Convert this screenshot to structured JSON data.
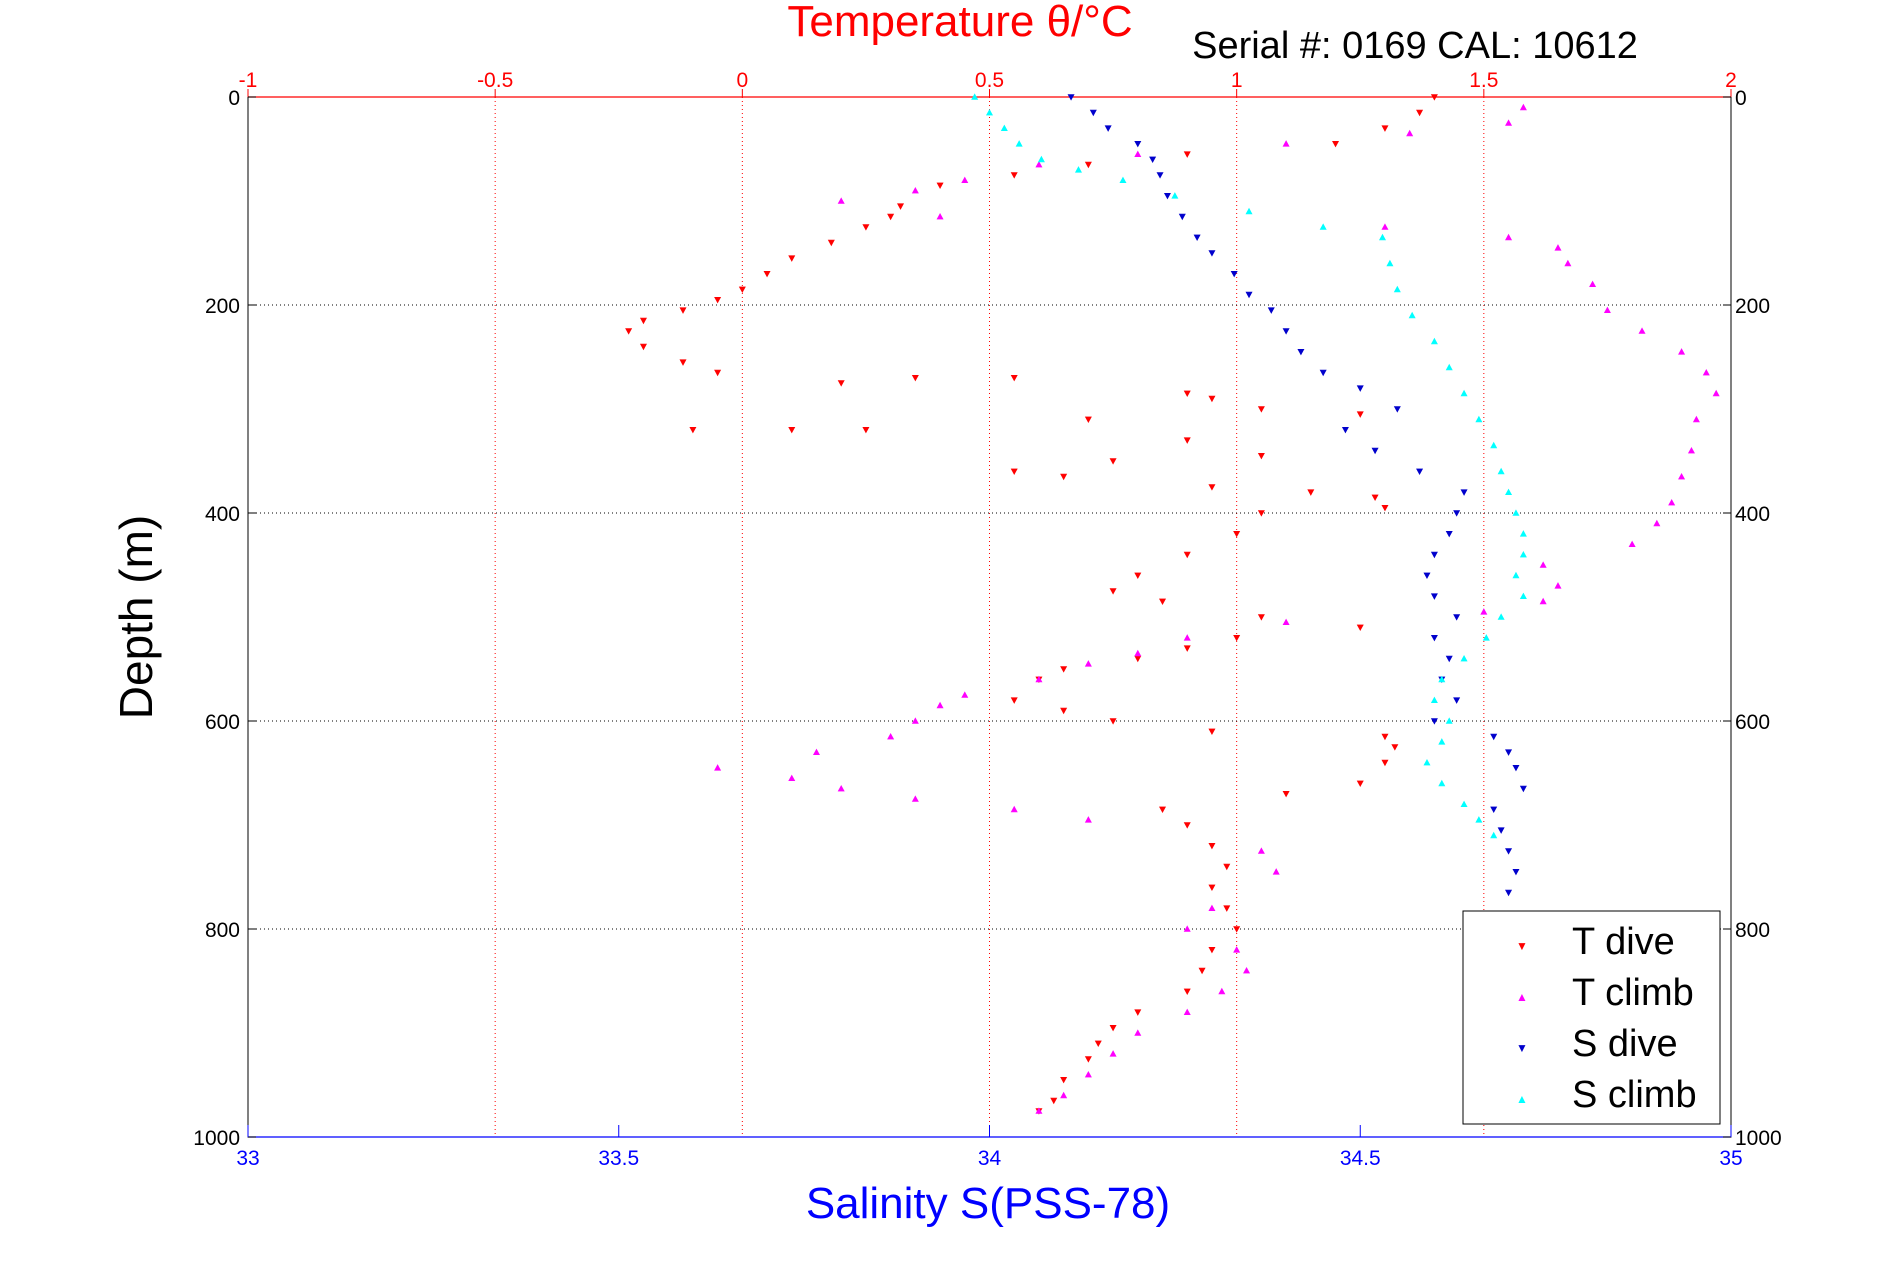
{
  "chart_data": {
    "type": "scatter",
    "title": "Temperature θ/°C",
    "subtitle": "Serial #: 0169 CAL: 10612",
    "xlabel_top": "Temperature θ/°C",
    "xlabel_bottom": "Salinity S(PSS-78)",
    "ylabel": "Depth (m)",
    "temperature_axis": {
      "range": [
        -1,
        2
      ],
      "ticks": [
        -1,
        -0.5,
        0,
        0.5,
        1,
        1.5,
        2
      ],
      "tick_labels": [
        "-1",
        "-0.5",
        "0",
        "0.5",
        "1",
        "1.5",
        "2"
      ]
    },
    "salinity_axis": {
      "range": [
        33,
        35
      ],
      "ticks": [
        33,
        33.5,
        34,
        34.5,
        35
      ],
      "tick_labels": [
        "33",
        "33.5",
        "34",
        "34.5",
        "35"
      ]
    },
    "depth_axis": {
      "range": [
        0,
        1000
      ],
      "reversed": true,
      "ticks": [
        0,
        200,
        400,
        600,
        800,
        1000
      ],
      "tick_labels": [
        "0",
        "200",
        "400",
        "600",
        "800",
        "1000"
      ]
    },
    "grid": true,
    "legend_position": "bottom-right",
    "colors": {
      "T dive": "#ff0000",
      "T climb": "#ff00ff",
      "S dive": "#0000cc",
      "S climb": "#00ffff",
      "temperature_axis": "#ff0000",
      "salinity_axis": "#0000ff"
    },
    "series": [
      {
        "name": "T dive",
        "axis": "temperature",
        "marker": "triangle-down",
        "points": [
          [
            1.4,
            0
          ],
          [
            1.37,
            15
          ],
          [
            1.3,
            30
          ],
          [
            1.2,
            45
          ],
          [
            0.9,
            55
          ],
          [
            0.7,
            65
          ],
          [
            0.55,
            75
          ],
          [
            0.4,
            85
          ],
          [
            0.32,
            105
          ],
          [
            0.3,
            115
          ],
          [
            0.25,
            125
          ],
          [
            0.18,
            140
          ],
          [
            0.1,
            155
          ],
          [
            0.05,
            170
          ],
          [
            0.0,
            185
          ],
          [
            -0.05,
            195
          ],
          [
            -0.12,
            205
          ],
          [
            -0.2,
            215
          ],
          [
            -0.23,
            225
          ],
          [
            -0.2,
            240
          ],
          [
            -0.12,
            255
          ],
          [
            -0.05,
            265
          ],
          [
            0.35,
            270
          ],
          [
            0.55,
            270
          ],
          [
            0.2,
            275
          ],
          [
            0.9,
            285
          ],
          [
            0.95,
            290
          ],
          [
            1.05,
            300
          ],
          [
            0.7,
            310
          ],
          [
            1.25,
            305
          ],
          [
            -0.1,
            320
          ],
          [
            0.1,
            320
          ],
          [
            0.25,
            320
          ],
          [
            0.9,
            330
          ],
          [
            1.05,
            345
          ],
          [
            0.75,
            350
          ],
          [
            0.55,
            360
          ],
          [
            0.65,
            365
          ],
          [
            0.95,
            375
          ],
          [
            1.15,
            380
          ],
          [
            1.28,
            385
          ],
          [
            1.3,
            395
          ],
          [
            1.05,
            400
          ],
          [
            1.0,
            420
          ],
          [
            0.9,
            440
          ],
          [
            0.8,
            460
          ],
          [
            0.75,
            475
          ],
          [
            0.85,
            485
          ],
          [
            1.05,
            500
          ],
          [
            1.25,
            510
          ],
          [
            1.0,
            520
          ],
          [
            0.9,
            530
          ],
          [
            0.8,
            540
          ],
          [
            0.65,
            550
          ],
          [
            0.6,
            560
          ],
          [
            0.55,
            580
          ],
          [
            0.65,
            590
          ],
          [
            0.75,
            600
          ],
          [
            0.95,
            610
          ],
          [
            1.3,
            615
          ],
          [
            1.32,
            625
          ],
          [
            1.3,
            640
          ],
          [
            1.25,
            660
          ],
          [
            1.1,
            670
          ],
          [
            0.85,
            685
          ],
          [
            0.9,
            700
          ],
          [
            0.95,
            720
          ],
          [
            0.98,
            740
          ],
          [
            0.95,
            760
          ],
          [
            0.98,
            780
          ],
          [
            1.0,
            800
          ],
          [
            0.95,
            820
          ],
          [
            0.93,
            840
          ],
          [
            0.9,
            860
          ],
          [
            0.8,
            880
          ],
          [
            0.75,
            895
          ],
          [
            0.72,
            910
          ],
          [
            0.7,
            925
          ],
          [
            0.65,
            945
          ],
          [
            0.63,
            965
          ],
          [
            0.6,
            975
          ]
        ]
      },
      {
        "name": "T climb",
        "axis": "temperature",
        "marker": "triangle-up",
        "points": [
          [
            1.58,
            10
          ],
          [
            1.55,
            25
          ],
          [
            1.35,
            35
          ],
          [
            1.1,
            45
          ],
          [
            0.8,
            55
          ],
          [
            0.6,
            65
          ],
          [
            0.45,
            80
          ],
          [
            0.35,
            90
          ],
          [
            0.2,
            100
          ],
          [
            0.4,
            115
          ],
          [
            1.3,
            125
          ],
          [
            1.55,
            135
          ],
          [
            1.65,
            145
          ],
          [
            1.67,
            160
          ],
          [
            1.72,
            180
          ],
          [
            1.75,
            205
          ],
          [
            1.82,
            225
          ],
          [
            1.9,
            245
          ],
          [
            1.95,
            265
          ],
          [
            1.97,
            285
          ],
          [
            1.93,
            310
          ],
          [
            1.92,
            340
          ],
          [
            1.9,
            365
          ],
          [
            1.88,
            390
          ],
          [
            1.85,
            410
          ],
          [
            1.8,
            430
          ],
          [
            1.62,
            450
          ],
          [
            1.65,
            470
          ],
          [
            1.62,
            485
          ],
          [
            1.5,
            495
          ],
          [
            1.1,
            505
          ],
          [
            0.9,
            520
          ],
          [
            0.8,
            535
          ],
          [
            0.7,
            545
          ],
          [
            0.6,
            560
          ],
          [
            0.45,
            575
          ],
          [
            0.4,
            585
          ],
          [
            0.35,
            600
          ],
          [
            0.3,
            615
          ],
          [
            0.15,
            630
          ],
          [
            -0.05,
            645
          ],
          [
            0.1,
            655
          ],
          [
            0.2,
            665
          ],
          [
            0.35,
            675
          ],
          [
            0.55,
            685
          ],
          [
            0.7,
            695
          ],
          [
            1.05,
            725
          ],
          [
            1.08,
            745
          ],
          [
            0.95,
            780
          ],
          [
            0.9,
            800
          ],
          [
            1.0,
            820
          ],
          [
            1.02,
            840
          ],
          [
            0.97,
            860
          ],
          [
            0.9,
            880
          ],
          [
            0.8,
            900
          ],
          [
            0.75,
            920
          ],
          [
            0.7,
            940
          ],
          [
            0.65,
            960
          ],
          [
            0.6,
            975
          ]
        ]
      },
      {
        "name": "S dive",
        "axis": "salinity",
        "marker": "triangle-down",
        "points": [
          [
            34.11,
            0
          ],
          [
            34.14,
            15
          ],
          [
            34.16,
            30
          ],
          [
            34.2,
            45
          ],
          [
            34.22,
            60
          ],
          [
            34.23,
            75
          ],
          [
            34.24,
            95
          ],
          [
            34.26,
            115
          ],
          [
            34.28,
            135
          ],
          [
            34.3,
            150
          ],
          [
            34.33,
            170
          ],
          [
            34.35,
            190
          ],
          [
            34.38,
            205
          ],
          [
            34.4,
            225
          ],
          [
            34.42,
            245
          ],
          [
            34.45,
            265
          ],
          [
            34.5,
            280
          ],
          [
            34.55,
            300
          ],
          [
            34.48,
            320
          ],
          [
            34.52,
            340
          ],
          [
            34.58,
            360
          ],
          [
            34.64,
            380
          ],
          [
            34.63,
            400
          ],
          [
            34.62,
            420
          ],
          [
            34.6,
            440
          ],
          [
            34.59,
            460
          ],
          [
            34.6,
            480
          ],
          [
            34.63,
            500
          ],
          [
            34.6,
            520
          ],
          [
            34.62,
            540
          ],
          [
            34.61,
            560
          ],
          [
            34.63,
            580
          ],
          [
            34.6,
            600
          ],
          [
            34.68,
            615
          ],
          [
            34.7,
            630
          ],
          [
            34.71,
            645
          ],
          [
            34.72,
            665
          ],
          [
            34.68,
            685
          ],
          [
            34.69,
            705
          ],
          [
            34.7,
            725
          ],
          [
            34.71,
            745
          ],
          [
            34.7,
            765
          ],
          [
            34.71,
            785
          ]
        ]
      },
      {
        "name": "S climb",
        "axis": "salinity",
        "marker": "triangle-up",
        "points": [
          [
            33.98,
            0
          ],
          [
            34.0,
            15
          ],
          [
            34.02,
            30
          ],
          [
            34.04,
            45
          ],
          [
            34.07,
            60
          ],
          [
            34.12,
            70
          ],
          [
            34.18,
            80
          ],
          [
            34.25,
            95
          ],
          [
            34.35,
            110
          ],
          [
            34.45,
            125
          ],
          [
            34.53,
            135
          ],
          [
            34.54,
            160
          ],
          [
            34.55,
            185
          ],
          [
            34.57,
            210
          ],
          [
            34.6,
            235
          ],
          [
            34.62,
            260
          ],
          [
            34.64,
            285
          ],
          [
            34.66,
            310
          ],
          [
            34.68,
            335
          ],
          [
            34.69,
            360
          ],
          [
            34.7,
            380
          ],
          [
            34.71,
            400
          ],
          [
            34.72,
            420
          ],
          [
            34.72,
            440
          ],
          [
            34.71,
            460
          ],
          [
            34.72,
            480
          ],
          [
            34.69,
            500
          ],
          [
            34.67,
            520
          ],
          [
            34.64,
            540
          ],
          [
            34.61,
            560
          ],
          [
            34.6,
            580
          ],
          [
            34.62,
            600
          ],
          [
            34.61,
            620
          ],
          [
            34.59,
            640
          ],
          [
            34.61,
            660
          ],
          [
            34.64,
            680
          ],
          [
            34.66,
            695
          ],
          [
            34.68,
            710
          ]
        ]
      }
    ]
  }
}
